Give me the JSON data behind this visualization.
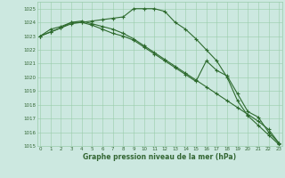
{
  "x_hours": [
    0,
    1,
    2,
    3,
    4,
    5,
    6,
    7,
    8,
    9,
    10,
    11,
    12,
    13,
    14,
    15,
    16,
    17,
    18,
    19,
    20,
    21,
    22,
    23
  ],
  "line1": [
    1023.0,
    1023.3,
    1023.6,
    1024.0,
    1024.0,
    1024.1,
    1024.2,
    1024.3,
    1024.4,
    1025.0,
    1025.0,
    1025.0,
    1024.8,
    1024.0,
    1023.5,
    1022.8,
    1022.0,
    1021.2,
    1020.0,
    1018.3,
    1017.2,
    1016.5,
    1015.8,
    1015.1
  ],
  "line2": [
    1023.0,
    1023.5,
    1023.7,
    1024.0,
    1024.1,
    1023.9,
    1023.7,
    1023.5,
    1023.2,
    1022.8,
    1022.3,
    1021.8,
    1021.3,
    1020.8,
    1020.3,
    1019.8,
    1019.3,
    1018.8,
    1018.3,
    1017.8,
    1017.3,
    1016.8,
    1016.2,
    1015.2
  ],
  "line3": [
    1023.0,
    1023.3,
    1023.6,
    1023.9,
    1024.0,
    1023.8,
    1023.5,
    1023.2,
    1023.0,
    1022.7,
    1022.2,
    1021.7,
    1021.2,
    1020.7,
    1020.2,
    1019.7,
    1021.2,
    1020.5,
    1020.1,
    1018.8,
    1017.5,
    1017.1,
    1016.0,
    1015.2
  ],
  "ylim": [
    1015,
    1025.5
  ],
  "yticks": [
    1015,
    1016,
    1017,
    1018,
    1019,
    1020,
    1021,
    1022,
    1023,
    1024,
    1025
  ],
  "x_hours_int": [
    0,
    1,
    2,
    3,
    4,
    5,
    6,
    7,
    8,
    9,
    10,
    11,
    12,
    13,
    14,
    15,
    16,
    17,
    18,
    19,
    20,
    21,
    22,
    23
  ],
  "xlabel": "Graphe pression niveau de la mer (hPa)",
  "bg_color": "#cce8e0",
  "line_color": "#2d6a2d",
  "grid_color": "#99ccaa",
  "tick_color": "#336633"
}
